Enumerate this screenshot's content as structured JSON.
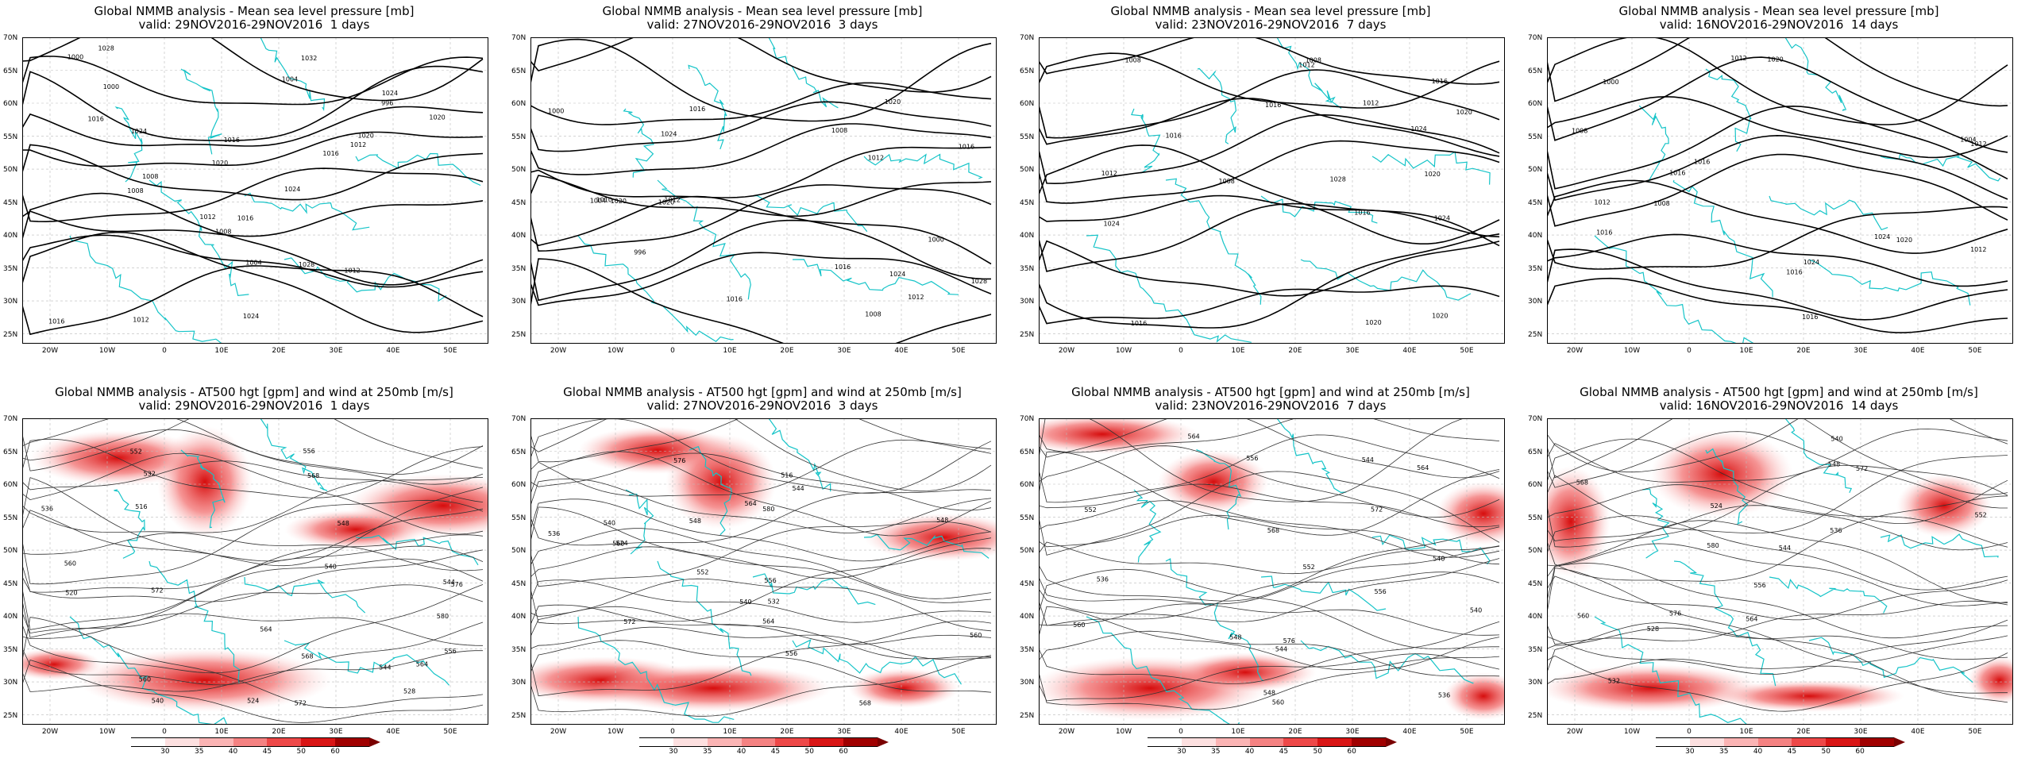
{
  "panels": [
    {
      "title": "Global NMMB analysis - Mean sea level pressure [mb]",
      "valid": "valid: 29NOV2016-29NOV2016  1 days",
      "kind": "mslp"
    },
    {
      "title": "Global NMMB analysis - Mean sea level pressure [mb]",
      "valid": "valid: 27NOV2016-29NOV2016  3 days",
      "kind": "mslp"
    },
    {
      "title": "Global NMMB analysis - Mean sea level pressure [mb]",
      "valid": "valid: 23NOV2016-29NOV2016  7 days",
      "kind": "mslp"
    },
    {
      "title": "Global NMMB analysis - Mean sea level pressure [mb]",
      "valid": "valid: 16NOV2016-29NOV2016  14 days",
      "kind": "mslp"
    },
    {
      "title": "Global NMMB analysis - AT500 hgt [gpm] and wind at 250mb [m/s]",
      "valid": "valid: 29NOV2016-29NOV2016  1 days",
      "kind": "z500"
    },
    {
      "title": "Global NMMB analysis - AT500 hgt [gpm] and wind at 250mb [m/s]",
      "valid": "valid: 27NOV2016-29NOV2016  3 days",
      "kind": "z500"
    },
    {
      "title": "Global NMMB analysis - AT500 hgt [gpm] and wind at 250mb [m/s]",
      "valid": "valid: 23NOV2016-29NOV2016  7 days",
      "kind": "z500"
    },
    {
      "title": "Global NMMB analysis - AT500 hgt [gpm] and wind at 250mb [m/s]",
      "valid": "valid: 16NOV2016-29NOV2016  14 days",
      "kind": "z500"
    }
  ],
  "lat_labels": [
    "70N",
    "65N",
    "60N",
    "55N",
    "50N",
    "45N",
    "40N",
    "35N",
    "30N",
    "25N"
  ],
  "lon_labels": [
    "20W",
    "10W",
    "0",
    "10E",
    "20E",
    "30E",
    "40E",
    "50E"
  ],
  "colorbar": {
    "ticks": [
      "30",
      "35",
      "40",
      "45",
      "50",
      "60"
    ],
    "colors": [
      "#ffffff",
      "#fde0e0",
      "#fbb4b4",
      "#f58282",
      "#ee4848",
      "#d91515",
      "#a00000"
    ]
  },
  "contour_labels": {
    "mslp": [
      [
        "1000",
        "1008",
        "1012",
        "1016",
        "1024",
        "1028",
        "1032",
        "1024",
        "1020",
        "1028",
        "1012",
        "1016",
        "1020",
        "1016",
        "1012",
        "1008",
        "1004",
        "1000",
        "996",
        "1004",
        "1008",
        "1016",
        "1020",
        "1024",
        "1016",
        "1012",
        "1024"
      ],
      [
        "1010",
        "1020",
        "1028",
        "1016",
        "1012",
        "1008",
        "1004",
        "1000",
        "996",
        "1000",
        "1008",
        "1016",
        "1020",
        "1024",
        "1012",
        "1016",
        "1020",
        "1024",
        "1012",
        "1016"
      ],
      [
        "1008",
        "1012",
        "1016",
        "1020",
        "1024",
        "1016",
        "1008",
        "1012",
        "1016",
        "1020",
        "1024",
        "1028",
        "1016",
        "1020",
        "1024",
        "1012",
        "1020",
        "1008",
        "1016"
      ],
      [
        "1008",
        "1012",
        "1016",
        "1000",
        "1004",
        "1008",
        "1012",
        "1016",
        "1020",
        "1024",
        "1016",
        "1012",
        "1024",
        "1016",
        "1012",
        "1020",
        "1016"
      ]
    ],
    "z500": [
      [
        "536",
        "540",
        "544",
        "552",
        "556",
        "560",
        "564",
        "568",
        "572",
        "516",
        "520",
        "524",
        "528",
        "532",
        "540",
        "544",
        "548",
        "556",
        "560",
        "564",
        "568",
        "572",
        "576",
        "580"
      ],
      [
        "540",
        "544",
        "548",
        "552",
        "556",
        "560",
        "564",
        "568",
        "516",
        "524",
        "532",
        "536",
        "540",
        "548",
        "556",
        "560",
        "564",
        "572",
        "576",
        "580"
      ],
      [
        "536",
        "540",
        "544",
        "548",
        "552",
        "556",
        "560",
        "564",
        "568",
        "536",
        "540",
        "544",
        "548",
        "552",
        "556",
        "560",
        "564",
        "572",
        "576"
      ],
      [
        "524",
        "528",
        "532",
        "536",
        "540",
        "544",
        "548",
        "552",
        "556",
        "560",
        "564",
        "568",
        "572",
        "576",
        "580"
      ]
    ]
  }
}
